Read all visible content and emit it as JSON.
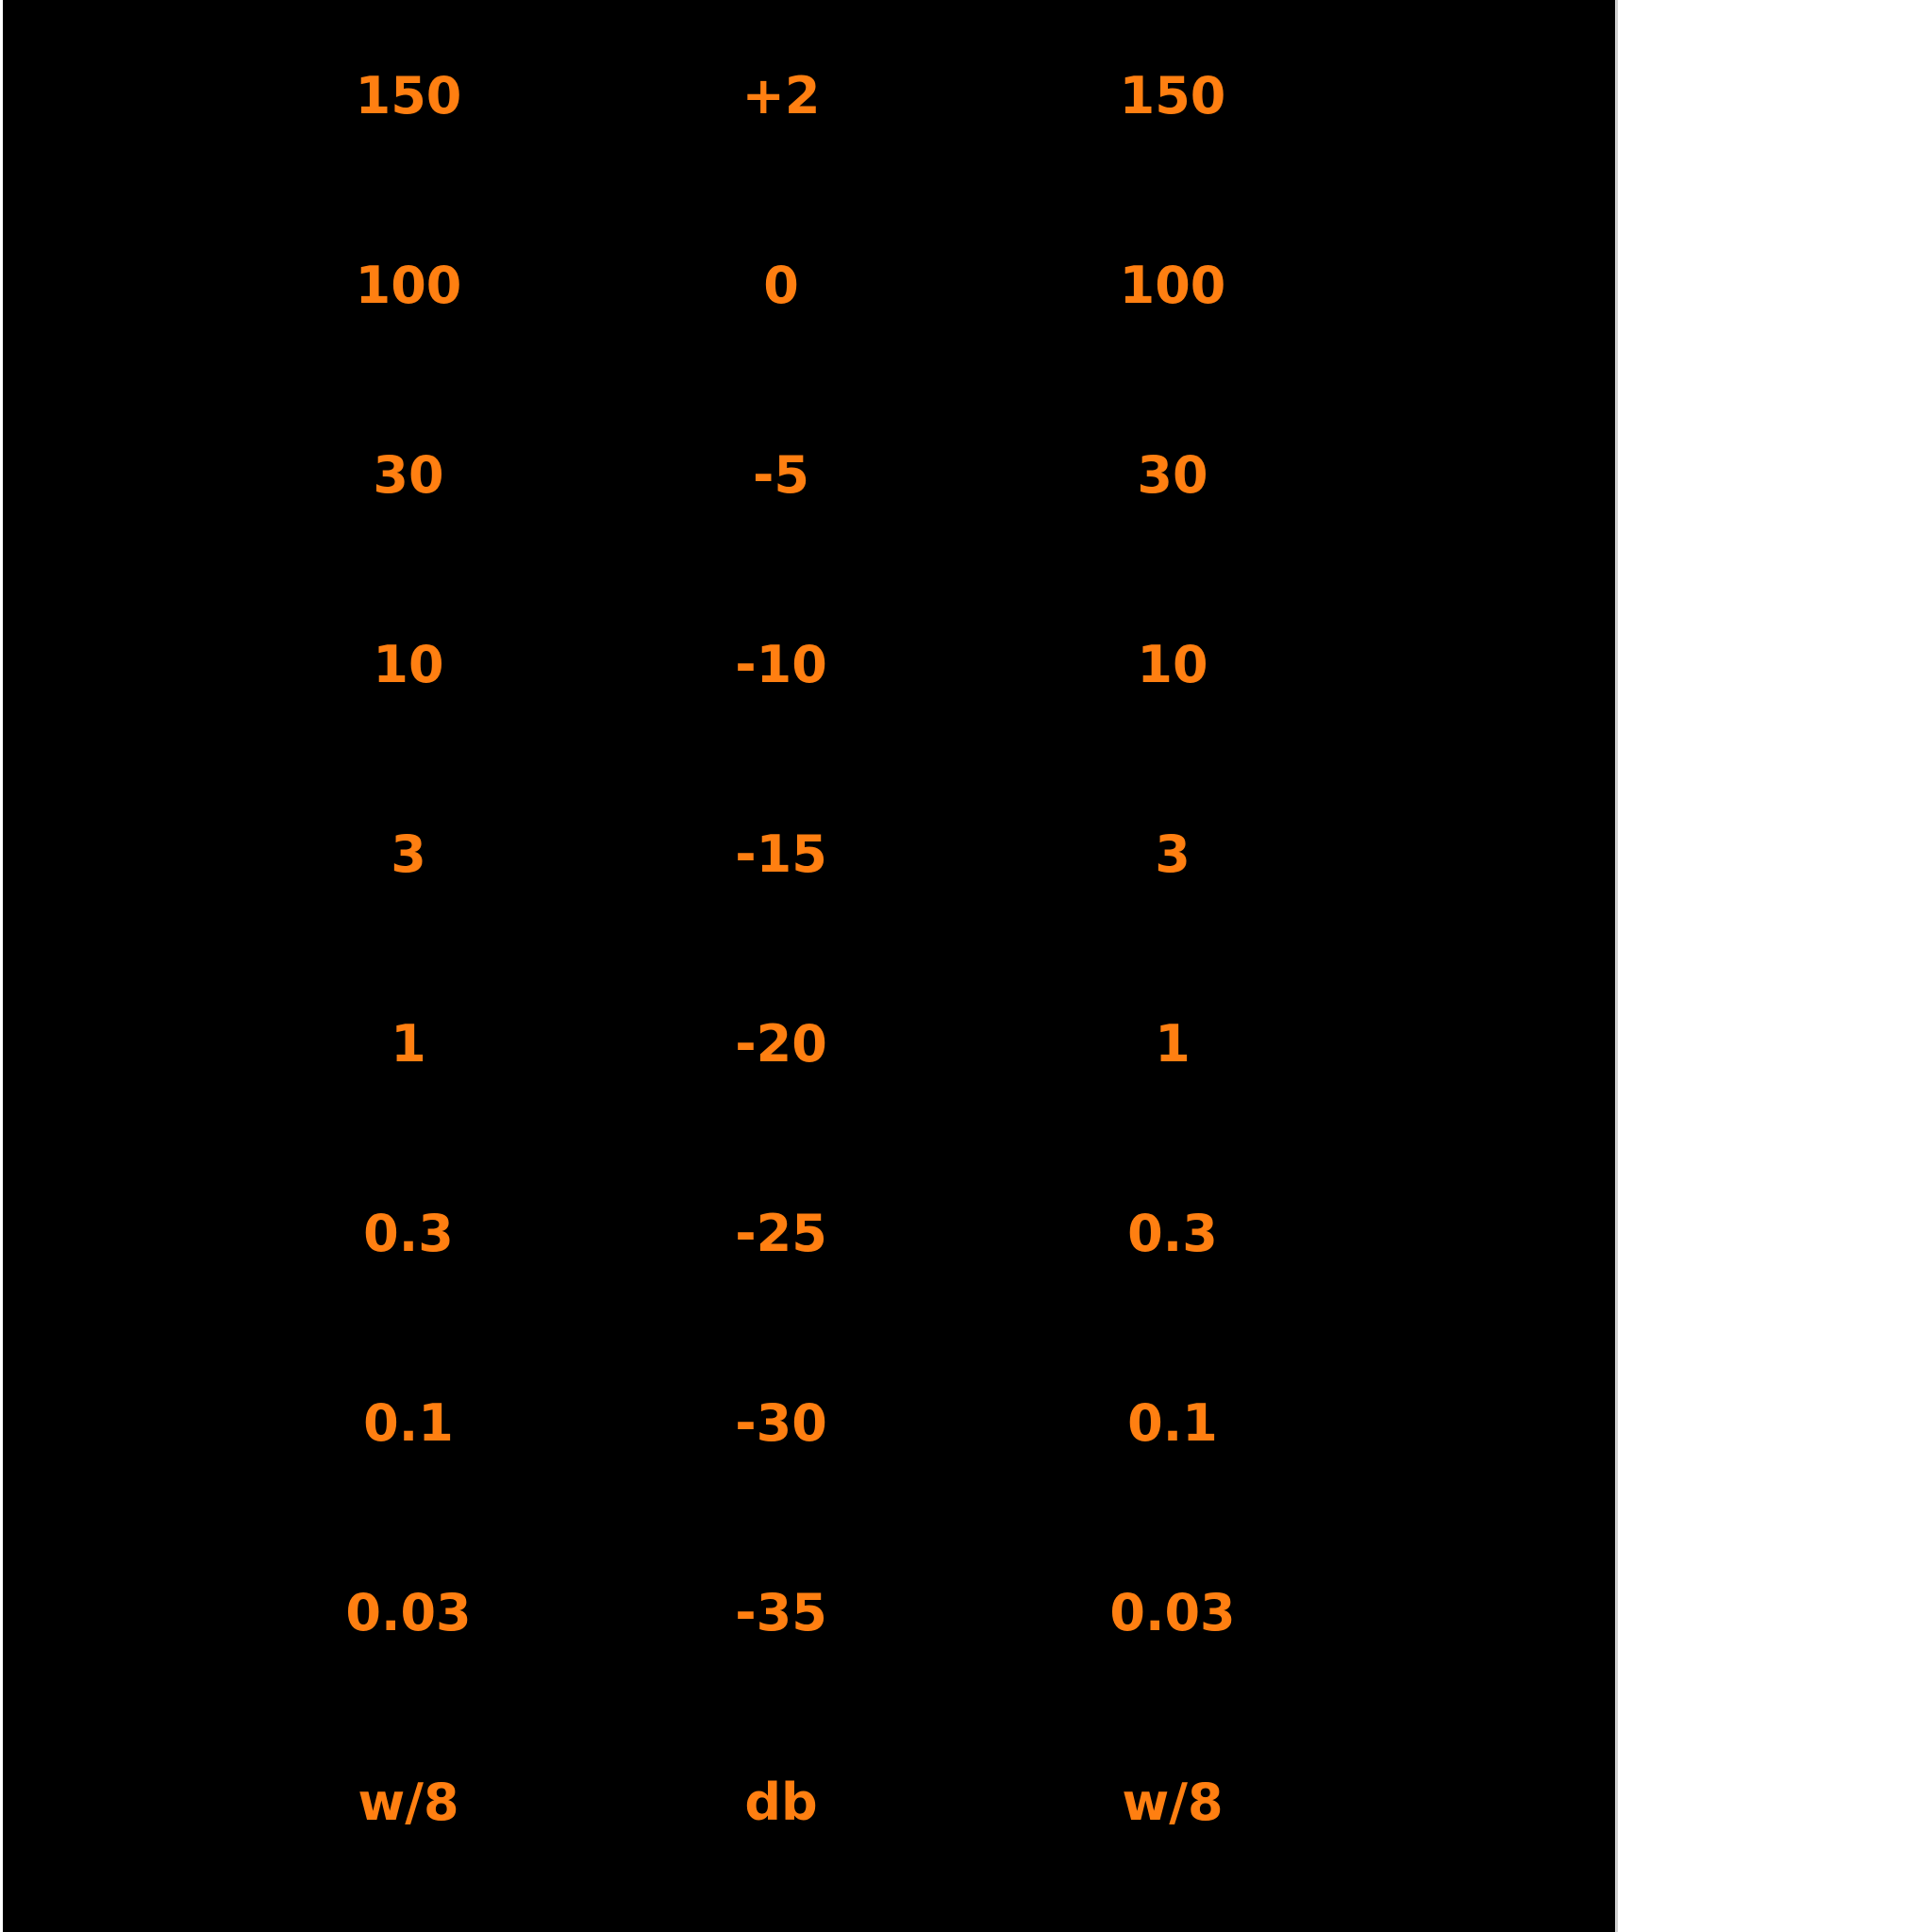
{
  "accent_color": "#FF7F11",
  "background_color": "#000000",
  "columns": [
    {
      "values": [
        "150",
        "100",
        "30",
        "10",
        "3",
        "1",
        "0.3",
        "0.1",
        "0.03"
      ],
      "unit": "w/8"
    },
    {
      "values": [
        "+2",
        "0",
        "-5",
        "-10",
        "-15",
        "-20",
        "-25",
        "-30",
        "-35"
      ],
      "unit": "db"
    },
    {
      "values": [
        "150",
        "100",
        "30",
        "10",
        "3",
        "1",
        "0.3",
        "0.1",
        "0.03"
      ],
      "unit": "w/8"
    }
  ]
}
